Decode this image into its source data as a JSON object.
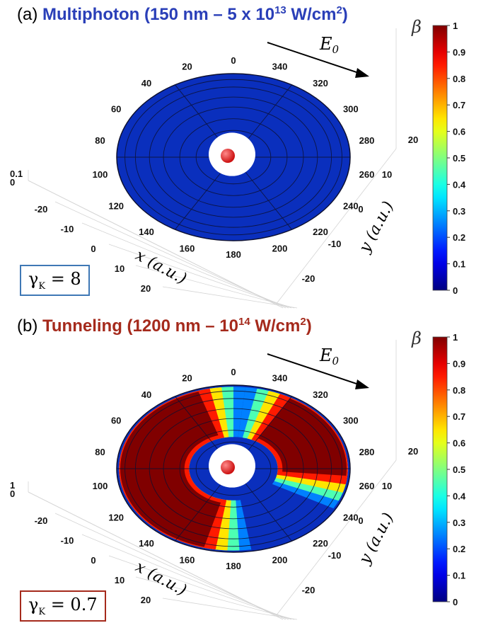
{
  "chart_data": [
    {
      "type": "heatmap",
      "panel_label": "(a)",
      "title_main": "Multiphoton (150 nm – 5 x 10",
      "title_exp": "13",
      "title_unit": " W/cm",
      "title_unit_exp": "2",
      "title_close": ")",
      "xlabel": "x (a.u.)",
      "ylabel": "y (a.u.)",
      "colorbar_label": "β",
      "colorbar_range": [
        0,
        1
      ],
      "colorbar_ticks": [
        "0",
        "0.1",
        "0.2",
        "0.3",
        "0.4",
        "0.5",
        "0.6",
        "0.7",
        "0.8",
        "0.9",
        "1"
      ],
      "x_ticks": [
        "-20",
        "-10",
        "0",
        "10",
        "20"
      ],
      "y_ticks": [
        "-20",
        "-10",
        "0",
        "10",
        "20"
      ],
      "z_ticks": [
        "0",
        "0.1"
      ],
      "angle_ticks": [
        "120",
        "100",
        "80",
        "60",
        "40",
        "20",
        "0",
        "340",
        "320",
        "300",
        "280",
        "260",
        "240",
        "220",
        "200",
        "180",
        "160",
        "140"
      ],
      "field_label": "E",
      "field_sub": "0",
      "gamma_symbol": "γ",
      "gamma_sub": "K",
      "gamma_value": " = 8",
      "high_beta_regions": []
    },
    {
      "type": "heatmap",
      "panel_label": "(b)",
      "title_main": "Tunneling (1200 nm – 10",
      "title_exp": "14",
      "title_unit": " W/cm",
      "title_unit_exp": "2",
      "title_close": ")",
      "xlabel": "x (a.u.)",
      "ylabel": "y (a.u.)",
      "colorbar_label": "β",
      "colorbar_range": [
        0,
        1
      ],
      "colorbar_ticks": [
        "0",
        "0.1",
        "0.2",
        "0.3",
        "0.4",
        "0.5",
        "0.6",
        "0.7",
        "0.8",
        "0.9",
        "1"
      ],
      "x_ticks": [
        "-20",
        "-10",
        "0",
        "10",
        "20"
      ],
      "y_ticks": [
        "-20",
        "-10",
        "0",
        "10",
        "20"
      ],
      "z_ticks": [
        "0",
        "1"
      ],
      "angle_ticks": [
        "120",
        "100",
        "80",
        "60",
        "40",
        "20",
        "0",
        "340",
        "320",
        "300",
        "280",
        "260",
        "240",
        "220",
        "200",
        "180",
        "160",
        "140"
      ],
      "field_label": "E",
      "field_sub": "0",
      "gamma_symbol": "γ",
      "gamma_sub": "K",
      "gamma_value": " = 0.7",
      "high_beta_regions": [
        {
          "angle_start": 108,
          "angle_end": 255,
          "value": 1.0
        },
        {
          "angle_start": 355,
          "angle_end": 60,
          "value": 1.0
        }
      ]
    }
  ],
  "colors": {
    "disk_base": "#0a2fbd",
    "grid_line": "#0d1030",
    "center_hole": "#ffffff",
    "atom": "#cc1010"
  }
}
